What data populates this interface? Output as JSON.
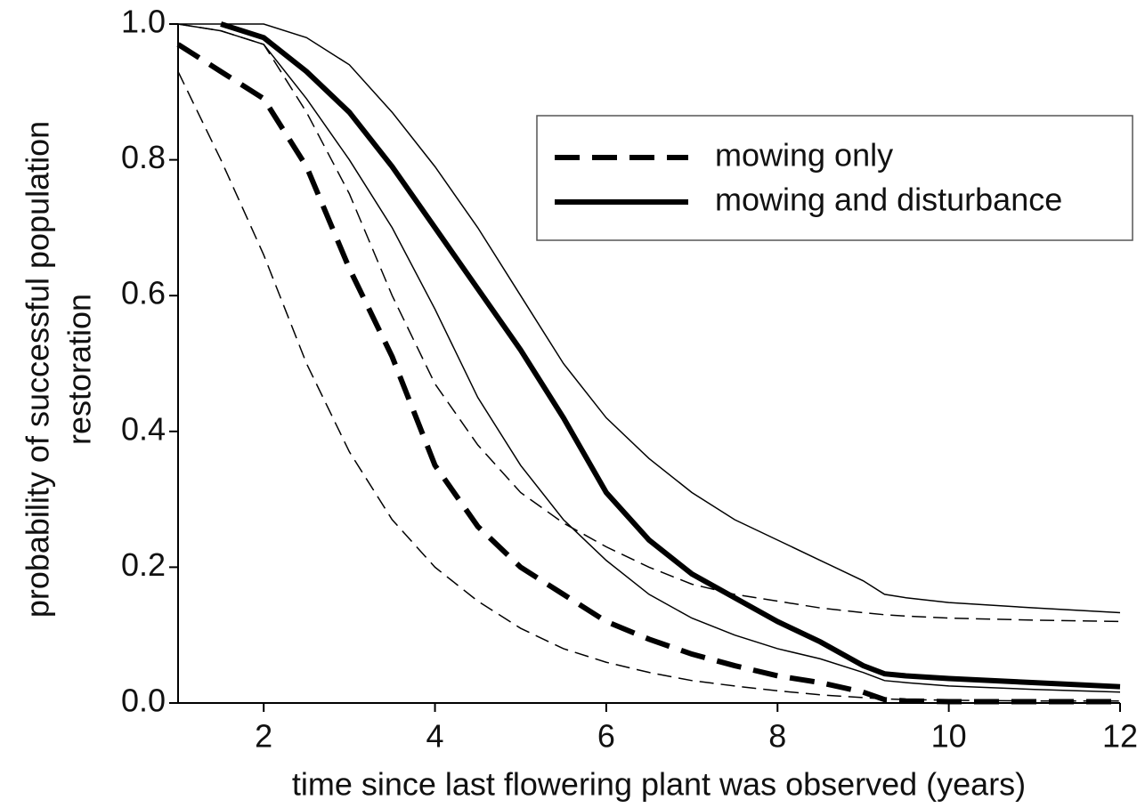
{
  "chart_data": {
    "type": "line",
    "xlabel": "time since last flowering plant was observed (years)",
    "ylabel": [
      "probability of successful population",
      "restoration"
    ],
    "x": [
      1,
      1.5,
      2,
      2.5,
      3,
      3.5,
      4,
      4.5,
      5,
      5.5,
      6,
      6.5,
      7,
      7.5,
      8,
      8.5,
      9,
      9.25,
      9.5,
      10,
      11,
      12
    ],
    "series": [
      {
        "color": "#000000",
        "style": "dashed",
        "weight": "thin",
        "values": [
          0.93,
          0.8,
          0.66,
          0.5,
          0.37,
          0.27,
          0.2,
          0.15,
          0.11,
          0.08,
          0.06,
          0.045,
          0.033,
          0.025,
          0.018,
          0.012,
          0.008,
          0.006,
          0.005,
          0.004,
          0.003,
          0.003
        ]
      },
      {
        "color": "#000000",
        "style": "dashed",
        "weight": "thin",
        "values": [
          1.0,
          0.99,
          0.97,
          0.87,
          0.75,
          0.6,
          0.47,
          0.38,
          0.31,
          0.265,
          0.23,
          0.2,
          0.175,
          0.16,
          0.15,
          0.14,
          0.133,
          0.13,
          0.128,
          0.125,
          0.122,
          0.12
        ]
      },
      {
        "color": "#000000",
        "style": "solid",
        "weight": "thin",
        "values": [
          1.0,
          1.0,
          1.0,
          0.98,
          0.94,
          0.87,
          0.79,
          0.7,
          0.6,
          0.5,
          0.42,
          0.36,
          0.31,
          0.27,
          0.24,
          0.21,
          0.18,
          0.16,
          0.155,
          0.148,
          0.14,
          0.133
        ]
      },
      {
        "color": "#000000",
        "style": "solid",
        "weight": "thin",
        "values": [
          1.0,
          0.99,
          0.97,
          0.89,
          0.8,
          0.7,
          0.58,
          0.45,
          0.35,
          0.27,
          0.21,
          0.16,
          0.125,
          0.1,
          0.08,
          0.065,
          0.045,
          0.033,
          0.03,
          0.025,
          0.02,
          0.016
        ]
      },
      {
        "name": "mowing only",
        "color": "#000000",
        "style": "dashed",
        "weight": "thick",
        "values": [
          0.97,
          0.93,
          0.89,
          0.79,
          0.64,
          0.51,
          0.35,
          0.26,
          0.2,
          0.16,
          0.12,
          0.094,
          0.072,
          0.055,
          0.04,
          0.03,
          0.016,
          0.005,
          0.003,
          0.002,
          0.002,
          0.002
        ]
      },
      {
        "name": "mowing and disturbance",
        "color": "#000000",
        "style": "solid",
        "weight": "thick",
        "values": [
          null,
          1.0,
          0.98,
          0.93,
          0.87,
          0.79,
          0.7,
          0.61,
          0.52,
          0.42,
          0.31,
          0.24,
          0.19,
          0.155,
          0.12,
          0.09,
          0.055,
          0.043,
          0.04,
          0.036,
          0.03,
          0.024
        ]
      }
    ],
    "xlim": [
      1,
      12
    ],
    "xticks": [
      2,
      4,
      6,
      8,
      10,
      12
    ],
    "ylim": [
      0,
      1
    ],
    "yticks": [
      {
        "value": 0,
        "label": "0.0"
      },
      0.2,
      0.4,
      0.6,
      0.8,
      {
        "value": 1,
        "label": "1.0"
      }
    ],
    "legend": "upper right",
    "grid": false
  }
}
